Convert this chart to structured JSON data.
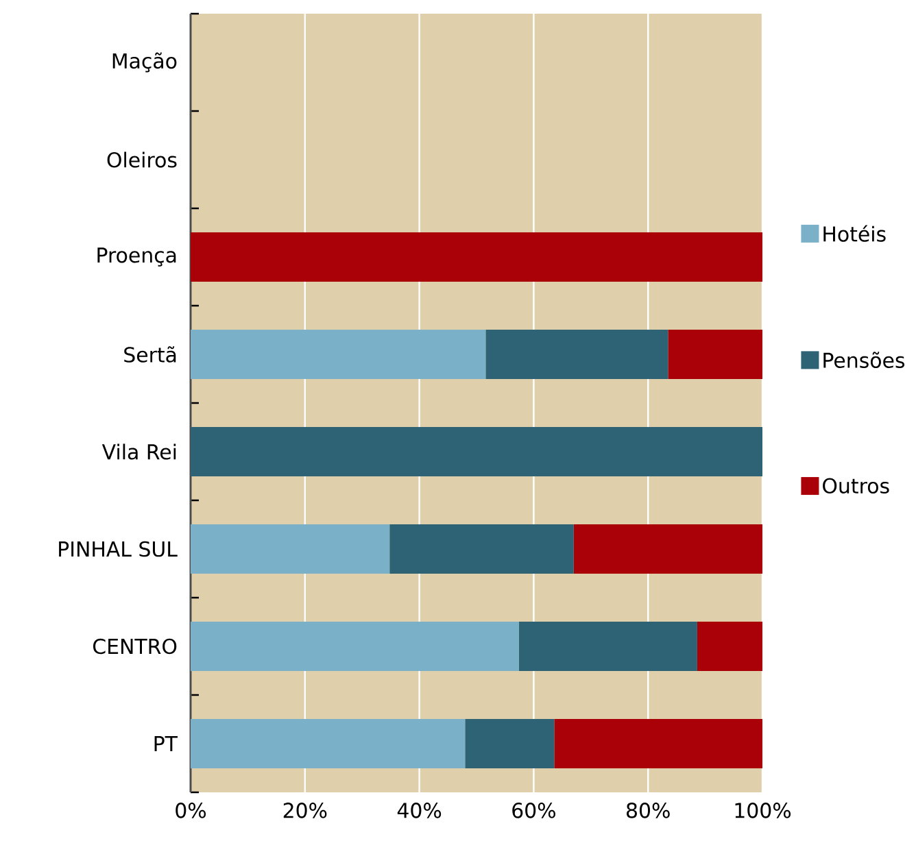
{
  "chart_data": {
    "type": "bar",
    "orientation": "horizontal",
    "stacked": true,
    "categories": [
      "Mação",
      "Oleiros",
      "Proença",
      "Sertã",
      "Vila Rei",
      "PINHAL SUL",
      "CENTRO",
      "PT"
    ],
    "series": [
      {
        "name": "Hotéis",
        "color": "#7ab1c8",
        "values": [
          0,
          0,
          0,
          51.6,
          0,
          34.8,
          57.4,
          48.0
        ]
      },
      {
        "name": "Pensões",
        "color": "#2e6375",
        "values": [
          0,
          0,
          0,
          31.9,
          100,
          32.2,
          31.2,
          15.6
        ]
      },
      {
        "name": "Outros",
        "color": "#aa0008",
        "values": [
          0,
          0,
          100,
          16.5,
          0,
          33.0,
          11.4,
          36.4
        ]
      }
    ],
    "xlim": [
      0,
      100
    ],
    "xticks": [
      {
        "value": 0,
        "label": "0%"
      },
      {
        "value": 20,
        "label": "20%"
      },
      {
        "value": 40,
        "label": "40%"
      },
      {
        "value": 60,
        "label": "60%"
      },
      {
        "value": 80,
        "label": "80%"
      },
      {
        "value": 100,
        "label": "100%"
      }
    ],
    "grid": "x",
    "legend": "right"
  }
}
